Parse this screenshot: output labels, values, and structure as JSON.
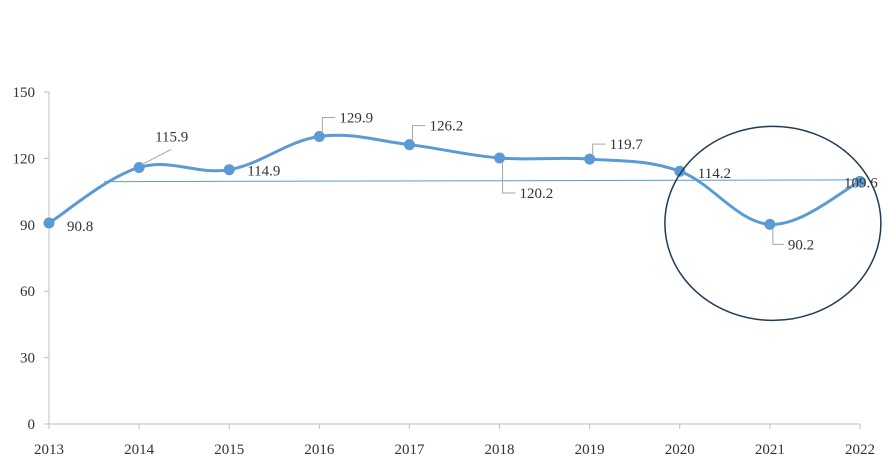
{
  "chart_data": {
    "type": "line",
    "title": "",
    "xlabel": "",
    "ylabel": "",
    "x": [
      "2013",
      "2014",
      "2015",
      "2016",
      "2017",
      "2018",
      "2019",
      "2020",
      "2021",
      "2022"
    ],
    "series": [
      {
        "values": [
          90.8,
          115.9,
          114.9,
          129.9,
          126.2,
          120.2,
          119.7,
          114.2,
          90.2,
          109.6
        ],
        "data_labels": [
          "90.8",
          "115.9",
          "114.9",
          "129.9",
          "126.2",
          "120.2",
          "119.7",
          "114.2",
          "90.2",
          "109.6"
        ],
        "color": "#5b9bd5",
        "line_style": "smoothed",
        "markers": "circle"
      }
    ],
    "reference_line": {
      "from_x": "2013",
      "to_x": "2022",
      "start": 109.5,
      "end": 110.3,
      "color": "#5b9bd5"
    },
    "highlight_ellipse": {
      "around": [
        "2021"
      ],
      "stroke_color": "#1f3b57"
    },
    "ylim": [
      0,
      150
    ],
    "yticks": [
      0,
      30,
      60,
      90,
      120,
      150
    ],
    "grid": false,
    "legend": "none",
    "colors": {
      "axis": "#bfbfbf",
      "leader_line": "#a6a6a6",
      "text": "#333333"
    }
  }
}
